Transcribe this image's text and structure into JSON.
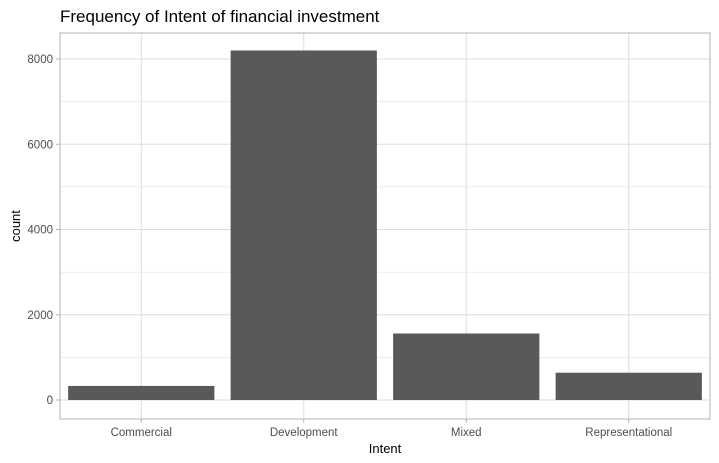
{
  "chart_data": {
    "type": "bar",
    "title": "Frequency of Intent of financial investment",
    "xlabel": "Intent",
    "ylabel": "count",
    "categories": [
      "Commercial",
      "Development",
      "Mixed",
      "Representational"
    ],
    "values": [
      330,
      8200,
      1560,
      640
    ],
    "ylim": [
      0,
      8600
    ],
    "yticks": [
      0,
      2000,
      4000,
      6000,
      8000
    ],
    "ytick_labels": [
      "0",
      "2000",
      "4000",
      "6000",
      "8000"
    ],
    "grid": true,
    "legend": "none",
    "colors": {
      "bar": "#595959",
      "grid": "#dedede",
      "panel_border": "#b3b3b3",
      "background": "#ffffff"
    }
  }
}
